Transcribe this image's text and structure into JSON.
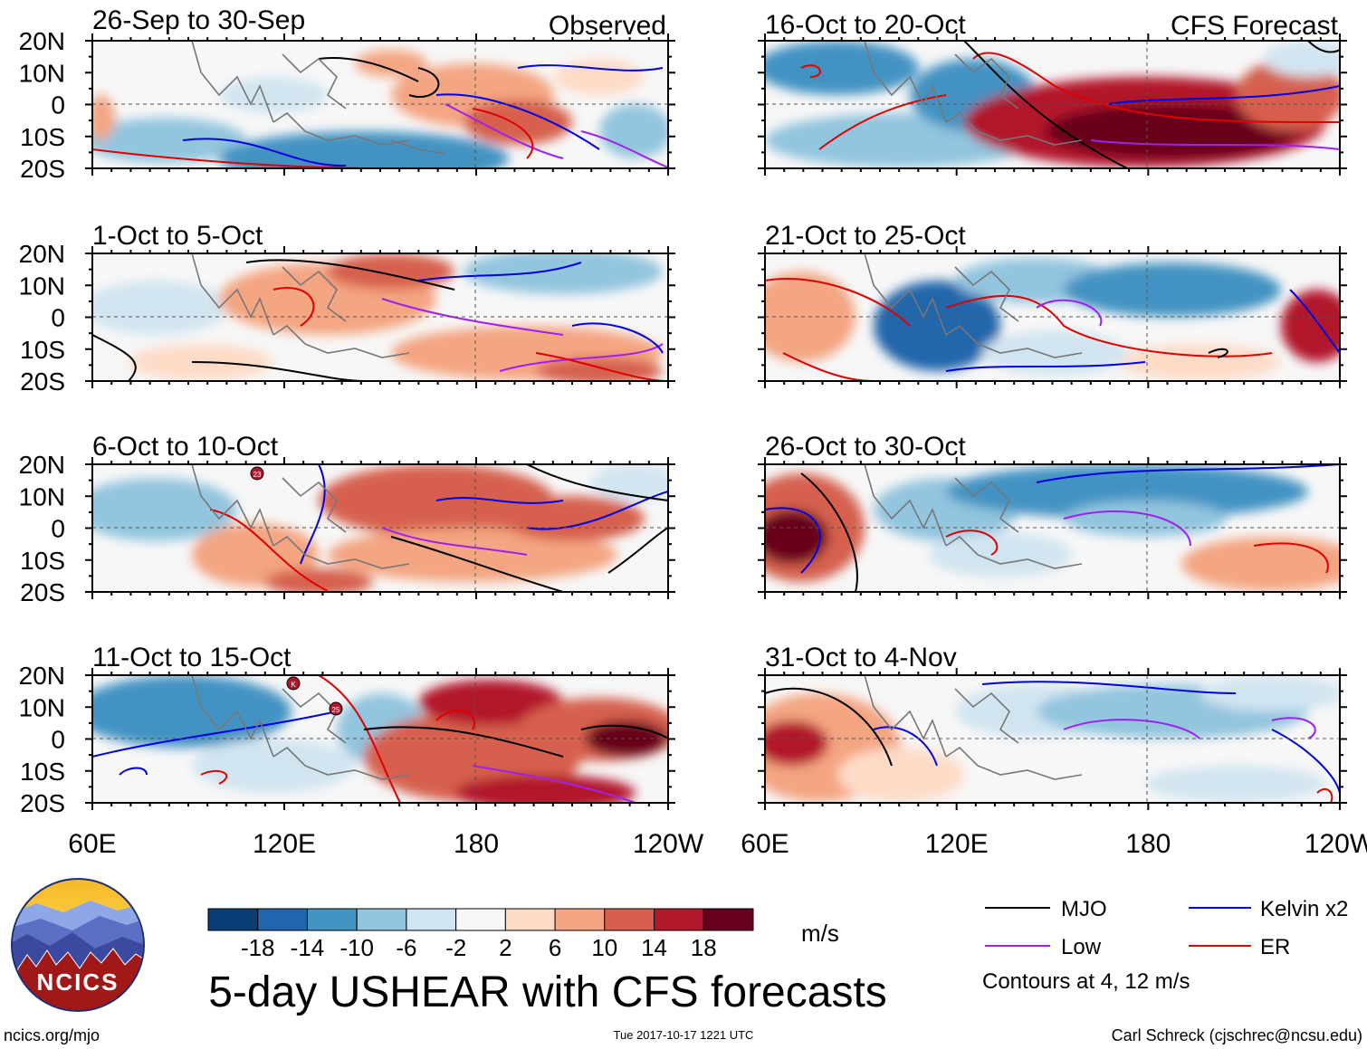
{
  "labels": {
    "observed": "Observed",
    "forecast": "CFS Forecast",
    "title": "5-day USHEAR with CFS forecasts",
    "url": "ncics.org/mjo",
    "timestamp": "Tue 2017-10-17 1221 UTC",
    "credit": "Carl Schreck (cjschrec@ncsu.edu)",
    "units": "m/s",
    "contours_note": "Contours at 4, 12 m/s",
    "logo_text": "NCICS"
  },
  "panels": [
    {
      "title": "26-Sep to 30-Sep",
      "column": "observed"
    },
    {
      "title": "1-Oct to 5-Oct",
      "column": "observed"
    },
    {
      "title": "6-Oct to 10-Oct",
      "column": "observed"
    },
    {
      "title": "11-Oct to 15-Oct",
      "column": "observed"
    },
    {
      "title": "16-Oct to 20-Oct",
      "column": "forecast"
    },
    {
      "title": "21-Oct to 25-Oct",
      "column": "forecast"
    },
    {
      "title": "26-Oct to 30-Oct",
      "column": "forecast"
    },
    {
      "title": "31-Oct to 4-Nov",
      "column": "forecast"
    }
  ],
  "lat_labels": [
    "20N",
    "10N",
    "0",
    "10S",
    "20S"
  ],
  "lon_labels": [
    "60E",
    "120E",
    "180",
    "120W"
  ],
  "colorbar": {
    "tick_labels": [
      "-18",
      "-14",
      "-10",
      "-6",
      "-2",
      "2",
      "6",
      "10",
      "14",
      "18"
    ],
    "colors": [
      "#0a3d75",
      "#2166ac",
      "#4393c3",
      "#92c5de",
      "#d1e5f0",
      "#f7f7f7",
      "#fddbc7",
      "#f4a582",
      "#d6604d",
      "#b2182b",
      "#67001f"
    ]
  },
  "legend": [
    {
      "label": "MJO",
      "color": "#000000"
    },
    {
      "label": "Kelvin x2",
      "color": "#0000e0"
    },
    {
      "label": "Low",
      "color": "#a020f0"
    },
    {
      "label": "ER",
      "color": "#e00000"
    }
  ],
  "storm_markers": [
    "23",
    "K",
    "25"
  ]
}
